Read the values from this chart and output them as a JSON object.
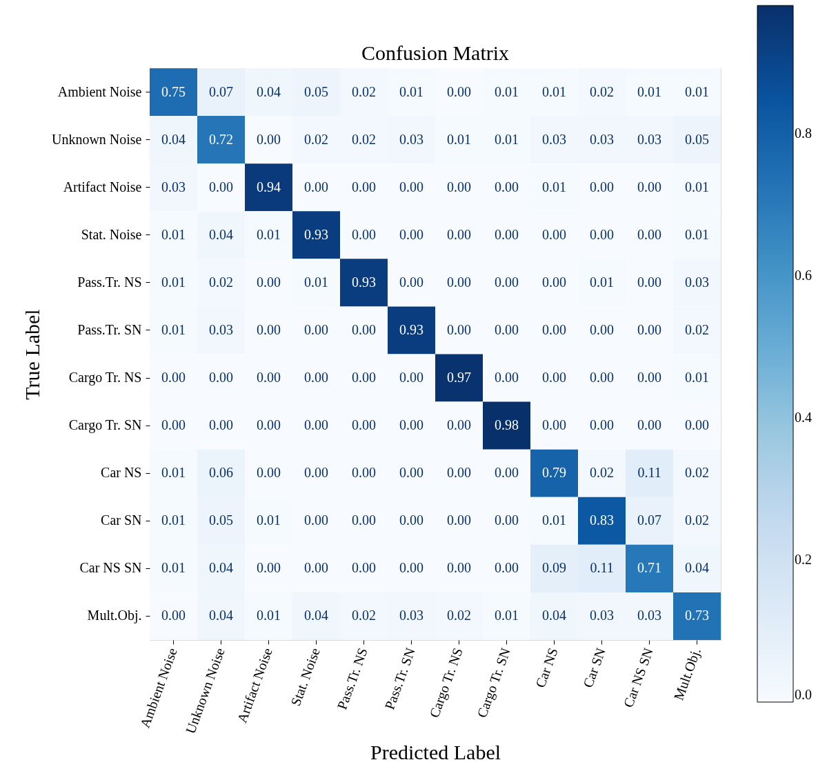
{
  "chart_data": {
    "type": "heatmap",
    "title": "Confusion Matrix",
    "xlabel": "Predicted Label",
    "ylabel": "True Label",
    "categories": [
      "Ambient Noise",
      "Unknown Noise",
      "Artifact Noise",
      "Stat. Noise",
      "Pass.Tr. NS",
      "Pass.Tr. SN",
      "Cargo Tr. NS",
      "Cargo Tr. SN",
      "Car NS",
      "Car SN",
      "Car NS SN",
      "Mult.Obj."
    ],
    "y_categories": [
      "Ambient Noise",
      "Unknown Noise",
      "Artifact Noise",
      "Stat. Noise",
      "Pass.Tr. NS",
      "Pass.Tr. SN",
      "Cargo Tr. NS",
      "Cargo Tr. SN",
      "Car NS",
      "Car SN",
      "Car NS SN",
      "Mult.Obj."
    ],
    "cells": [
      [
        0.75,
        0.07,
        0.04,
        0.05,
        0.02,
        0.01,
        0.0,
        0.01,
        0.01,
        0.02,
        0.01,
        0.01
      ],
      [
        0.04,
        0.72,
        0.0,
        0.02,
        0.02,
        0.03,
        0.01,
        0.01,
        0.03,
        0.03,
        0.03,
        0.05
      ],
      [
        0.03,
        0.0,
        0.94,
        0.0,
        0.0,
        0.0,
        0.0,
        0.0,
        0.01,
        0.0,
        0.0,
        0.01
      ],
      [
        0.01,
        0.04,
        0.01,
        0.93,
        0.0,
        0.0,
        0.0,
        0.0,
        0.0,
        0.0,
        0.0,
        0.01
      ],
      [
        0.01,
        0.02,
        0.0,
        0.01,
        0.93,
        0.0,
        0.0,
        0.0,
        0.0,
        0.01,
        0.0,
        0.03
      ],
      [
        0.01,
        0.03,
        0.0,
        0.0,
        0.0,
        0.93,
        0.0,
        0.0,
        0.0,
        0.0,
        0.0,
        0.02
      ],
      [
        0.0,
        0.0,
        0.0,
        0.0,
        0.0,
        0.0,
        0.97,
        0.0,
        0.0,
        0.0,
        0.0,
        0.01
      ],
      [
        0.0,
        0.0,
        0.0,
        0.0,
        0.0,
        0.0,
        0.0,
        0.98,
        0.0,
        0.0,
        0.0,
        0.0
      ],
      [
        0.01,
        0.06,
        0.0,
        0.0,
        0.0,
        0.0,
        0.0,
        0.0,
        0.79,
        0.02,
        0.11,
        0.02
      ],
      [
        0.01,
        0.05,
        0.01,
        0.0,
        0.0,
        0.0,
        0.0,
        0.0,
        0.01,
        0.83,
        0.07,
        0.02
      ],
      [
        0.01,
        0.04,
        0.0,
        0.0,
        0.0,
        0.0,
        0.0,
        0.0,
        0.09,
        0.11,
        0.71,
        0.04
      ],
      [
        0.0,
        0.04,
        0.01,
        0.04,
        0.02,
        0.03,
        0.02,
        0.01,
        0.04,
        0.03,
        0.03,
        0.73
      ]
    ],
    "cell_labels": [
      [
        "0.75",
        "0.07",
        "0.04",
        "0.05",
        "0.02",
        "0.01",
        "0.00",
        "0.01",
        "0.01",
        "0.02",
        "0.01",
        "0.01"
      ],
      [
        "0.04",
        "0.72",
        "0.00",
        "0.02",
        "0.02",
        "0.03",
        "0.01",
        "0.01",
        "0.03",
        "0.03",
        "0.03",
        "0.05"
      ],
      [
        "0.03",
        "0.00",
        "0.94",
        "0.00",
        "0.00",
        "0.00",
        "0.00",
        "0.00",
        "0.01",
        "0.00",
        "0.00",
        "0.01"
      ],
      [
        "0.01",
        "0.04",
        "0.01",
        "0.93",
        "0.00",
        "0.00",
        "0.00",
        "0.00",
        "0.00",
        "0.00",
        "0.00",
        "0.01"
      ],
      [
        "0.01",
        "0.02",
        "0.00",
        "0.01",
        "0.93",
        "0.00",
        "0.00",
        "0.00",
        "0.00",
        "0.01",
        "0.00",
        "0.03"
      ],
      [
        "0.01",
        "0.03",
        "0.00",
        "0.00",
        "0.00",
        "0.93",
        "0.00",
        "0.00",
        "0.00",
        "0.00",
        "0.00",
        "0.02"
      ],
      [
        "0.00",
        "0.00",
        "0.00",
        "0.00",
        "0.00",
        "0.00",
        "0.97",
        "0.00",
        "0.00",
        "0.00",
        "0.00",
        "0.01"
      ],
      [
        "0.00",
        "0.00",
        "0.00",
        "0.00",
        "0.00",
        "0.00",
        "0.00",
        "0.98",
        "0.00",
        "0.00",
        "0.00",
        "0.00"
      ],
      [
        "0.01",
        "0.06",
        "0.00",
        "0.00",
        "0.00",
        "0.00",
        "0.00",
        "0.00",
        "0.79",
        "0.02",
        "0.11",
        "0.02"
      ],
      [
        "0.01",
        "0.05",
        "0.01",
        "0.00",
        "0.00",
        "0.00",
        "0.00",
        "0.00",
        "0.01",
        "0.83",
        "0.07",
        "0.02"
      ],
      [
        "0.01",
        "0.04",
        "0.00",
        "0.00",
        "0.00",
        "0.00",
        "0.00",
        "0.00",
        "0.09",
        "0.11",
        "0.71",
        "0.04"
      ],
      [
        "0.00",
        "0.04",
        "0.01",
        "0.04",
        "0.02",
        "0.03",
        "0.02",
        "0.01",
        "0.04",
        "0.03",
        "0.03",
        "0.73"
      ]
    ],
    "clim": [
      0,
      0.98
    ],
    "cticks": [
      {
        "value": 0,
        "label": "0.0"
      },
      {
        "value": 0.2,
        "label": "0.2"
      },
      {
        "value": 0.4,
        "label": "0.4"
      },
      {
        "value": 0.6,
        "label": "0.6"
      },
      {
        "value": 0.8,
        "label": "0.8"
      }
    ],
    "data_labels": true
  }
}
